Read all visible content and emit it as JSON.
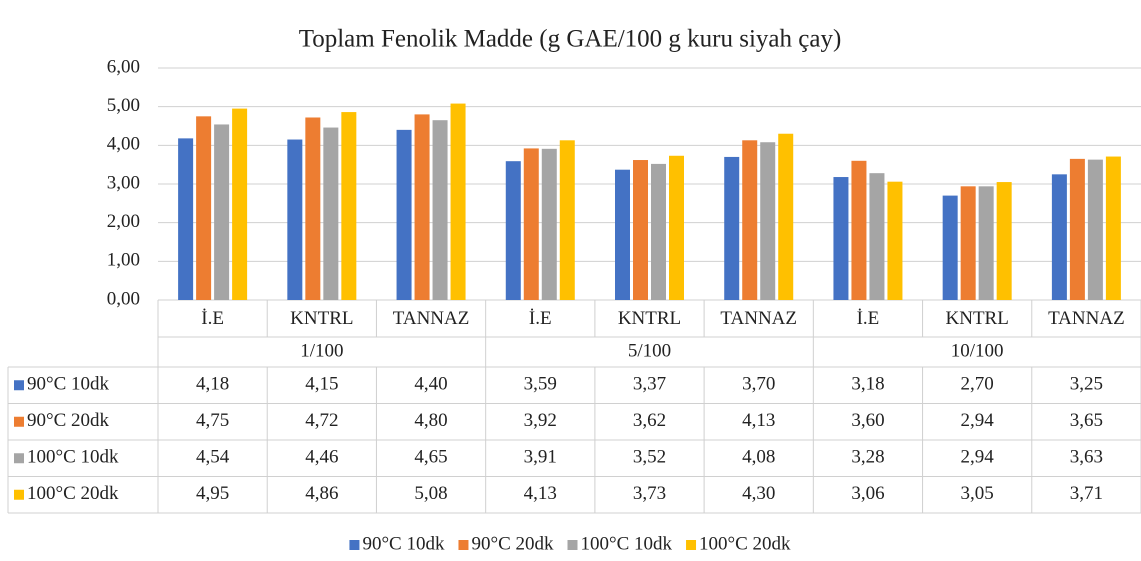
{
  "chart_data": {
    "type": "bar",
    "title": "Toplam Fenolik Madde (g GAE/100 g kuru siyah çay)",
    "categories": [
      "İ.E",
      "KNTRL",
      "TANNAZ",
      "İ.E",
      "KNTRL",
      "TANNAZ",
      "İ.E",
      "KNTRL",
      "TANNAZ"
    ],
    "category_groups": [
      "1/100",
      "5/100",
      "10/100"
    ],
    "series": [
      {
        "name": "90°C 10dk",
        "color": "#4472c4",
        "values": [
          4.18,
          4.15,
          4.4,
          3.59,
          3.37,
          3.7,
          3.18,
          2.7,
          3.25
        ],
        "value_labels": [
          "4,18",
          "4,15",
          "4,40",
          "3,59",
          "3,37",
          "3,70",
          "3,18",
          "2,70",
          "3,25"
        ]
      },
      {
        "name": "90°C 20dk",
        "color": "#ed7d31",
        "values": [
          4.75,
          4.72,
          4.8,
          3.92,
          3.62,
          4.13,
          3.6,
          2.94,
          3.65
        ],
        "value_labels": [
          "4,75",
          "4,72",
          "4,80",
          "3,92",
          "3,62",
          "4,13",
          "3,60",
          "2,94",
          "3,65"
        ]
      },
      {
        "name": "100°C 10dk",
        "color": "#a5a5a5",
        "values": [
          4.54,
          4.46,
          4.65,
          3.91,
          3.52,
          4.08,
          3.28,
          2.94,
          3.63
        ],
        "value_labels": [
          "4,54",
          "4,46",
          "4,65",
          "3,91",
          "3,52",
          "4,08",
          "3,28",
          "2,94",
          "3,63"
        ]
      },
      {
        "name": "100°C 20dk",
        "color": "#ffc000",
        "values": [
          4.95,
          4.86,
          5.08,
          4.13,
          3.73,
          4.3,
          3.06,
          3.05,
          3.71
        ],
        "value_labels": [
          "4,95",
          "4,86",
          "5,08",
          "4,13",
          "3,73",
          "4,30",
          "3,06",
          "3,05",
          "3,71"
        ]
      }
    ],
    "ylim": [
      0,
      6
    ],
    "yticks": [
      {
        "value": 0,
        "label": "0,00"
      },
      {
        "value": 1,
        "label": "1,00"
      },
      {
        "value": 2,
        "label": "2,00"
      },
      {
        "value": 3,
        "label": "3,00"
      },
      {
        "value": 4,
        "label": "4,00"
      },
      {
        "value": 5,
        "label": "5,00"
      },
      {
        "value": 6,
        "label": "6,00"
      }
    ],
    "grid": true,
    "legend": "bottom",
    "data_table": true
  }
}
